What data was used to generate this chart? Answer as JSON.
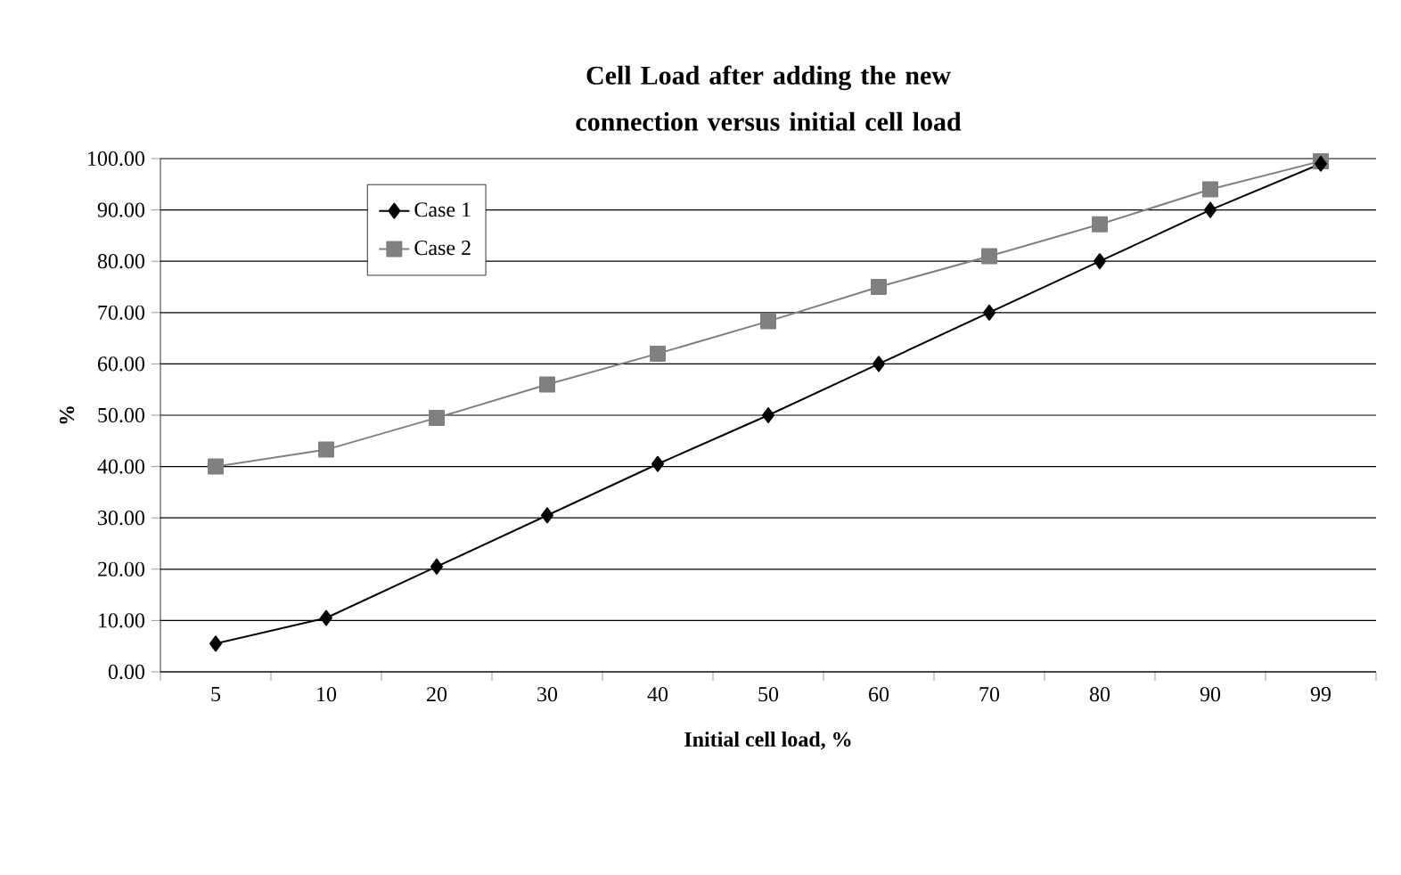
{
  "chart_data": {
    "type": "line",
    "title": "Cell Load after adding the new connection versus initial cell load",
    "xlabel": "Initial cell load, %",
    "ylabel": "%",
    "categories": [
      "5",
      "10",
      "20",
      "30",
      "40",
      "50",
      "60",
      "70",
      "80",
      "90",
      "99"
    ],
    "series": [
      {
        "name": "Case 1",
        "color": "#000000",
        "marker": "diamond",
        "values": [
          5.5,
          10.5,
          20.5,
          30.5,
          40.5,
          50,
          60,
          70,
          80,
          90,
          99
        ]
      },
      {
        "name": "Case 2",
        "color": "#808080",
        "marker": "square",
        "values": [
          40,
          43.3,
          49.5,
          56,
          62,
          68.3,
          75,
          81,
          87.2,
          94,
          99.5
        ]
      }
    ],
    "ylim": [
      0,
      100
    ],
    "yticks": [
      {
        "value": 0,
        "label": "0.00"
      },
      {
        "value": 10,
        "label": "10.00"
      },
      {
        "value": 20,
        "label": "20.00"
      },
      {
        "value": 30,
        "label": "30.00"
      },
      {
        "value": 40,
        "label": "40.00"
      },
      {
        "value": 50,
        "label": "50.00"
      },
      {
        "value": 60,
        "label": "60.00"
      },
      {
        "value": 70,
        "label": "70.00"
      },
      {
        "value": 80,
        "label": "80.00"
      },
      {
        "value": 90,
        "label": "90.00"
      },
      {
        "value": 100,
        "label": "100.00"
      }
    ],
    "grid": "y",
    "legend": "top left",
    "line_style": "solid"
  }
}
